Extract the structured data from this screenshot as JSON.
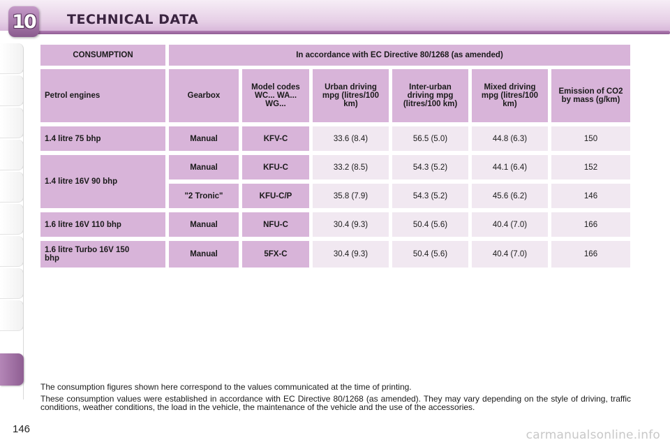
{
  "header": {
    "chapter_number": "10",
    "title": "TECHNICAL DATA"
  },
  "table": {
    "consumption_label": "CONSUMPTION",
    "directive_label": "In accordance with EC Directive 80/1268 (as amended)",
    "col_headers": {
      "engines": "Petrol engines",
      "gearbox": "Gearbox",
      "model_codes": "Model codes WC... WA... WG...",
      "urban": "Urban driving mpg (litres/100 km)",
      "inter_urban": "Inter-urban driving mpg (litres/100 km)",
      "mixed": "Mixed driving mpg (litres/100 km)",
      "emission": "Emission of CO2 by mass (g/km)"
    },
    "rows": [
      {
        "engine": "1.4 litre 75 bhp",
        "gearbox": "Manual",
        "code": "KFV-C",
        "urban": "33.6 (8.4)",
        "inter_urban": "56.5 (5.0)",
        "mixed": "44.8 (6.3)",
        "co2": "150"
      },
      {
        "engine": "1.4 litre 16V 90 bhp",
        "gearbox": "Manual",
        "code": "KFU-C",
        "urban": "33.2 (8.5)",
        "inter_urban": "54.3 (5.2)",
        "mixed": "44.1 (6.4)",
        "co2": "152"
      },
      {
        "engine": "",
        "gearbox": "\"2 Tronic\"",
        "code": "KFU-C/P",
        "urban": "35.8 (7.9)",
        "inter_urban": "54.3 (5.2)",
        "mixed": "45.6 (6.2)",
        "co2": "146"
      },
      {
        "engine": "1.6 litre 16V 110 bhp",
        "gearbox": "Manual",
        "code": "NFU-C",
        "urban": "30.4 (9.3)",
        "inter_urban": "50.4 (5.6)",
        "mixed": "40.4 (7.0)",
        "co2": "166"
      },
      {
        "engine": "1.6 litre Turbo 16V 150 bhp",
        "gearbox": "Manual",
        "code": "5FX-C",
        "urban": "30.4 (9.3)",
        "inter_urban": "50.4 (5.6)",
        "mixed": "40.4 (7.0)",
        "co2": "166"
      }
    ]
  },
  "notes": [
    "The consumption figures shown here correspond to the values communicated at the time of printing.",
    "These consumption values were established in accordance with EC Directive 80/1268 (as amended). They may vary depending on the style of driving, traffic conditions, weather conditions, the load in the vehicle, the maintenance of the vehicle and the use of the accessories."
  ],
  "page_number": "146",
  "watermark": "carmanualsonline.info",
  "colors": {
    "header_purple": "#d8b4d9",
    "cell_light": "#f1e8f1",
    "accent": "#8e5e92"
  }
}
